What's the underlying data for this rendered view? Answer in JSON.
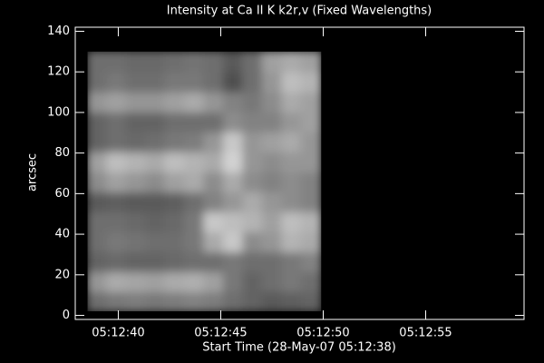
{
  "chart_data": {
    "type": "heatmap",
    "title": "Intensity at Ca II K k2r,v (Fixed Wavelengths)",
    "xlabel": "Start Time (28-May-07 05:12:38)",
    "ylabel": "arcsec",
    "xlim": [
      -0.1,
      21.8
    ],
    "ylim": [
      -2,
      142
    ],
    "xticks": [
      {
        "value": 2,
        "label": "05:12:40"
      },
      {
        "value": 7,
        "label": "05:12:45"
      },
      {
        "value": 12,
        "label": "05:12:50"
      },
      {
        "value": 17,
        "label": "05:12:55"
      }
    ],
    "yticks": [
      0,
      20,
      40,
      60,
      80,
      100,
      120,
      140
    ],
    "image_xlim": [
      0.5,
      11.9
    ],
    "image_ylim": [
      2,
      130
    ],
    "colormap": "gray",
    "clim": [
      0,
      255
    ],
    "values": [
      [
        110,
        120,
        125,
        120,
        125,
        130,
        125,
        110,
        100,
        90,
        95,
        100
      ],
      [
        150,
        170,
        165,
        160,
        170,
        175,
        160,
        120,
        100,
        110,
        120,
        110
      ],
      [
        100,
        105,
        100,
        100,
        105,
        110,
        110,
        120,
        110,
        110,
        120,
        130
      ],
      [
        110,
        120,
        115,
        110,
        110,
        120,
        170,
        200,
        140,
        150,
        180,
        170
      ],
      [
        110,
        110,
        105,
        100,
        105,
        120,
        200,
        190,
        180,
        160,
        190,
        180
      ],
      [
        90,
        95,
        90,
        90,
        95,
        110,
        130,
        150,
        170,
        150,
        140,
        130
      ],
      [
        140,
        160,
        150,
        140,
        160,
        170,
        140,
        170,
        140,
        130,
        140,
        130
      ],
      [
        160,
        190,
        180,
        170,
        190,
        180,
        170,
        210,
        150,
        140,
        150,
        150
      ],
      [
        100,
        110,
        105,
        110,
        120,
        125,
        150,
        200,
        150,
        160,
        170,
        150
      ],
      [
        100,
        110,
        100,
        100,
        110,
        110,
        110,
        140,
        130,
        130,
        150,
        160
      ],
      [
        150,
        160,
        150,
        150,
        160,
        170,
        150,
        130,
        120,
        140,
        170,
        160
      ],
      [
        110,
        120,
        110,
        110,
        120,
        120,
        110,
        80,
        110,
        150,
        190,
        180
      ],
      [
        110,
        110,
        105,
        105,
        110,
        115,
        110,
        90,
        110,
        160,
        170,
        160
      ]
    ]
  }
}
